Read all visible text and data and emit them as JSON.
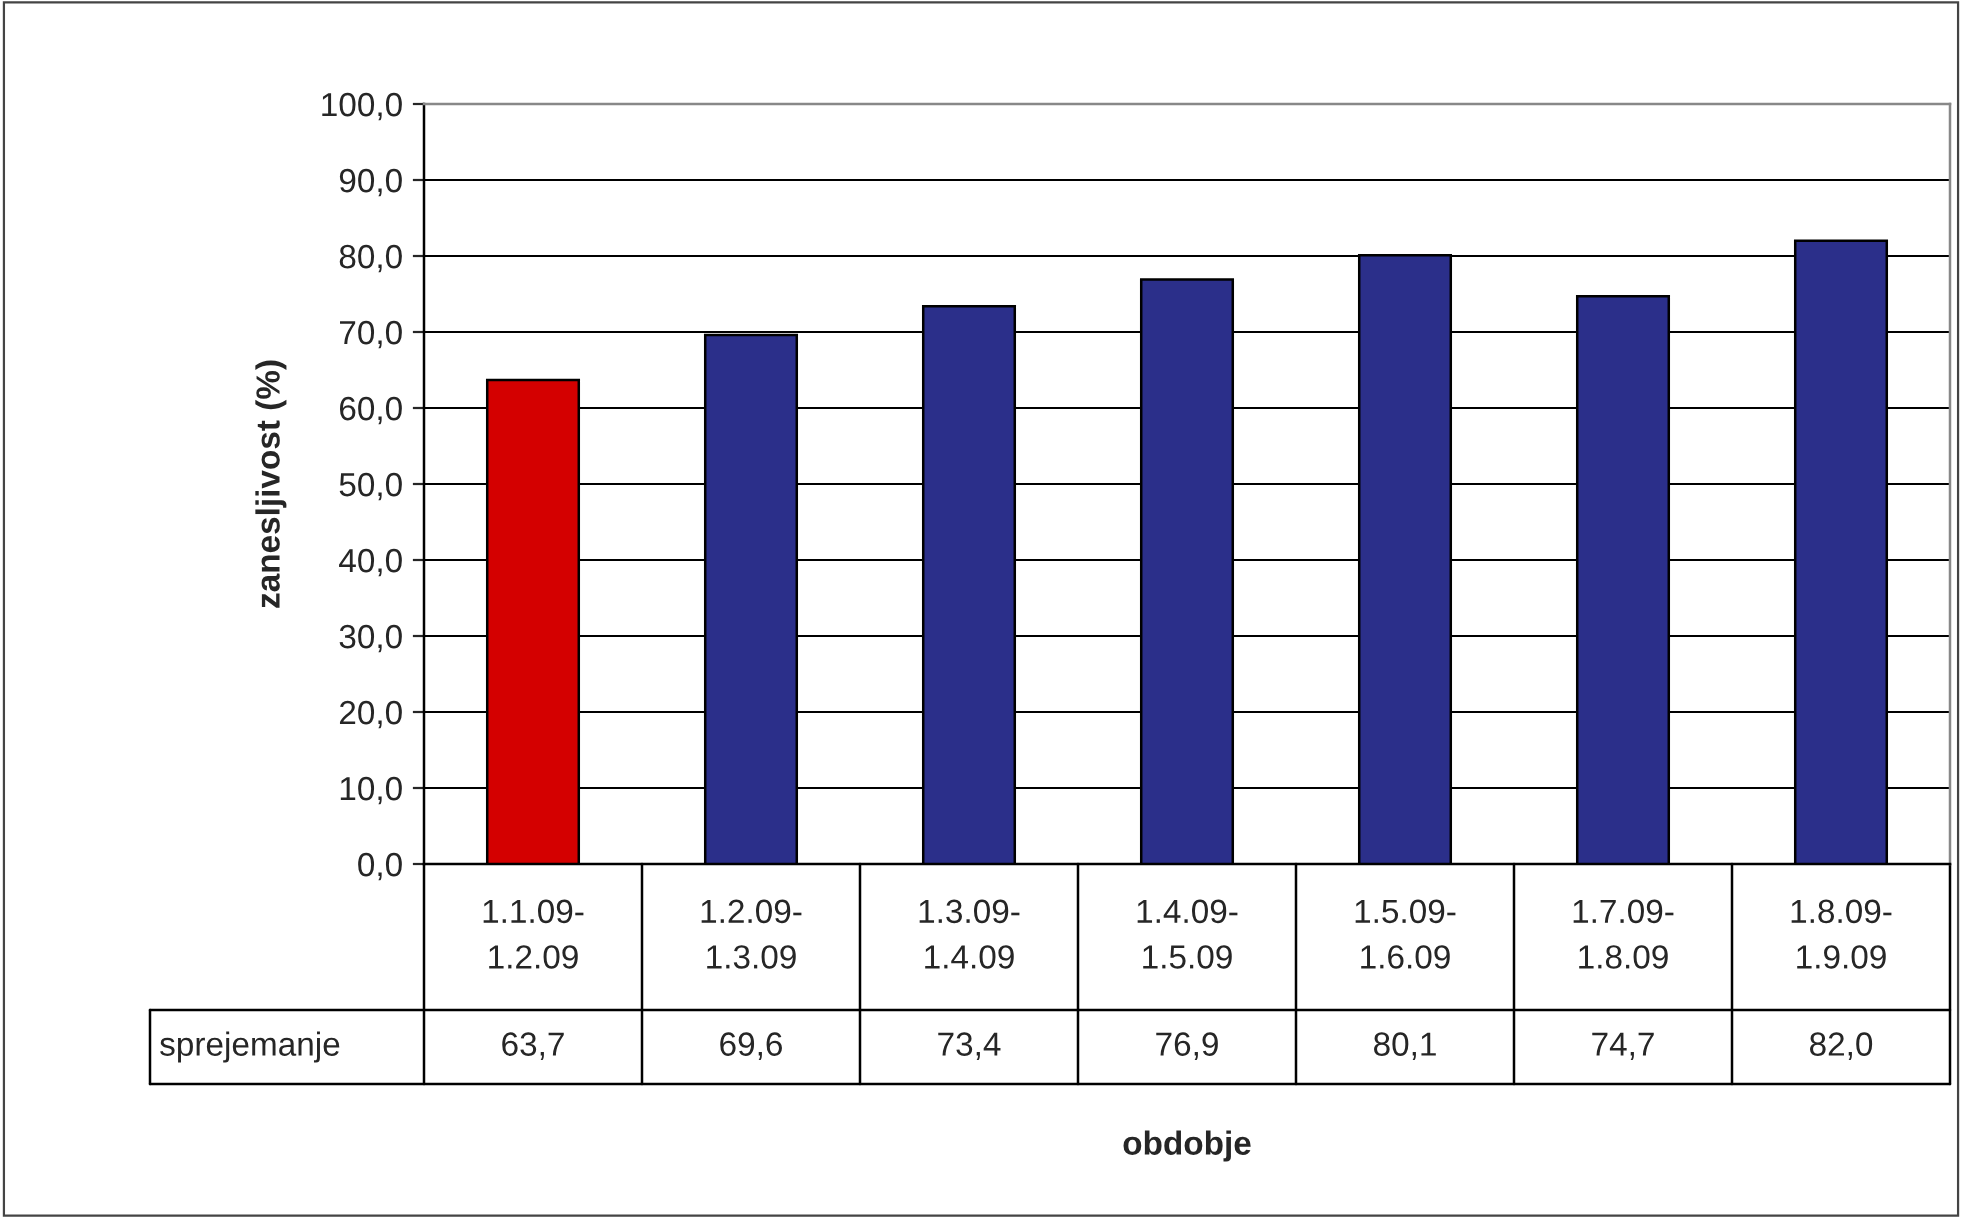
{
  "chart_data": {
    "type": "bar",
    "xlabel": "obdobje",
    "ylabel": "zanesljivost (%)",
    "categories": [
      "1.1.09-1.2.09",
      "1.2.09-1.3.09",
      "1.3.09-1.4.09",
      "1.4.09-1.5.09",
      "1.5.09-1.6.09",
      "1.7.09-1.8.09",
      "1.8.09-1.9.09"
    ],
    "series": [
      {
        "name": "sprejemanje",
        "values": [
          63.7,
          69.6,
          73.4,
          76.9,
          80.1,
          74.7,
          82.0
        ],
        "colors": [
          "#d40000",
          "#2b2f8a",
          "#2b2f8a",
          "#2b2f8a",
          "#2b2f8a",
          "#2b2f8a",
          "#2b2f8a"
        ],
        "value_labels": [
          "63,7",
          "69,6",
          "73,4",
          "76,9",
          "80,1",
          "74,7",
          "82,0"
        ]
      }
    ],
    "ylim": [
      0,
      100
    ],
    "yticks": [
      {
        "value": 0,
        "label": "0,0"
      },
      {
        "value": 10,
        "label": "10,0"
      },
      {
        "value": 20,
        "label": "20,0"
      },
      {
        "value": 30,
        "label": "30,0"
      },
      {
        "value": 40,
        "label": "40,0"
      },
      {
        "value": 50,
        "label": "50,0"
      },
      {
        "value": 60,
        "label": "60,0"
      },
      {
        "value": 70,
        "label": "70,0"
      },
      {
        "value": 80,
        "label": "80,0"
      },
      {
        "value": 90,
        "label": "90,0"
      },
      {
        "value": 100,
        "label": "100,0"
      }
    ],
    "grid": "y"
  }
}
